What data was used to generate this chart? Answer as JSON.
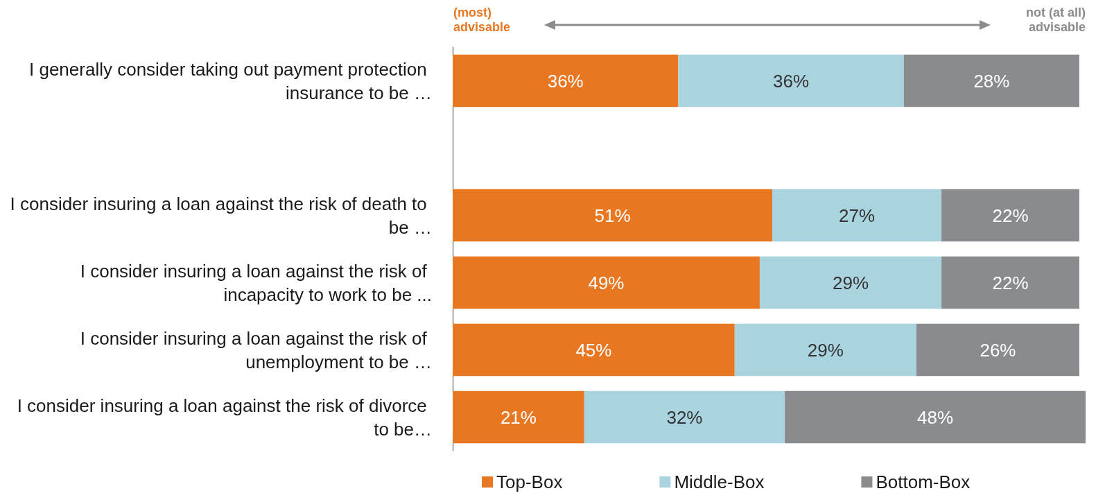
{
  "chart_data": {
    "type": "bar",
    "orientation": "horizontal",
    "stacked": true,
    "categories": [
      "I generally consider taking out payment protection insurance to be …",
      null,
      "I consider insuring a loan against the risk of death to be …",
      "I consider insuring a loan against the risk of incapacity to work to be ...",
      "I consider insuring a loan against the risk of unemployment to be …",
      "I consider insuring a loan against the risk of divorce to be…"
    ],
    "series": [
      {
        "name": "Top-Box",
        "color": "#e87722",
        "values": [
          36,
          null,
          51,
          49,
          45,
          21
        ],
        "value_labels": [
          "36%",
          null,
          "51%",
          "49%",
          "45%",
          "21%"
        ]
      },
      {
        "name": "Middle-Box",
        "color": "#aad3e0",
        "values": [
          36,
          null,
          27,
          29,
          29,
          32
        ],
        "value_labels": [
          "36%",
          null,
          "27%",
          "29%",
          "29%",
          "32%"
        ]
      },
      {
        "name": "Bottom-Box",
        "color": "#898b8e",
        "values": [
          28,
          null,
          22,
          22,
          26,
          48
        ],
        "value_labels": [
          "28%",
          null,
          "22%",
          "22%",
          "26%",
          "48%"
        ]
      }
    ],
    "legend": "bottom",
    "grid": false,
    "annotations": [
      "(most)\nadvisable",
      "not (at all)\nadvisable"
    ]
  }
}
